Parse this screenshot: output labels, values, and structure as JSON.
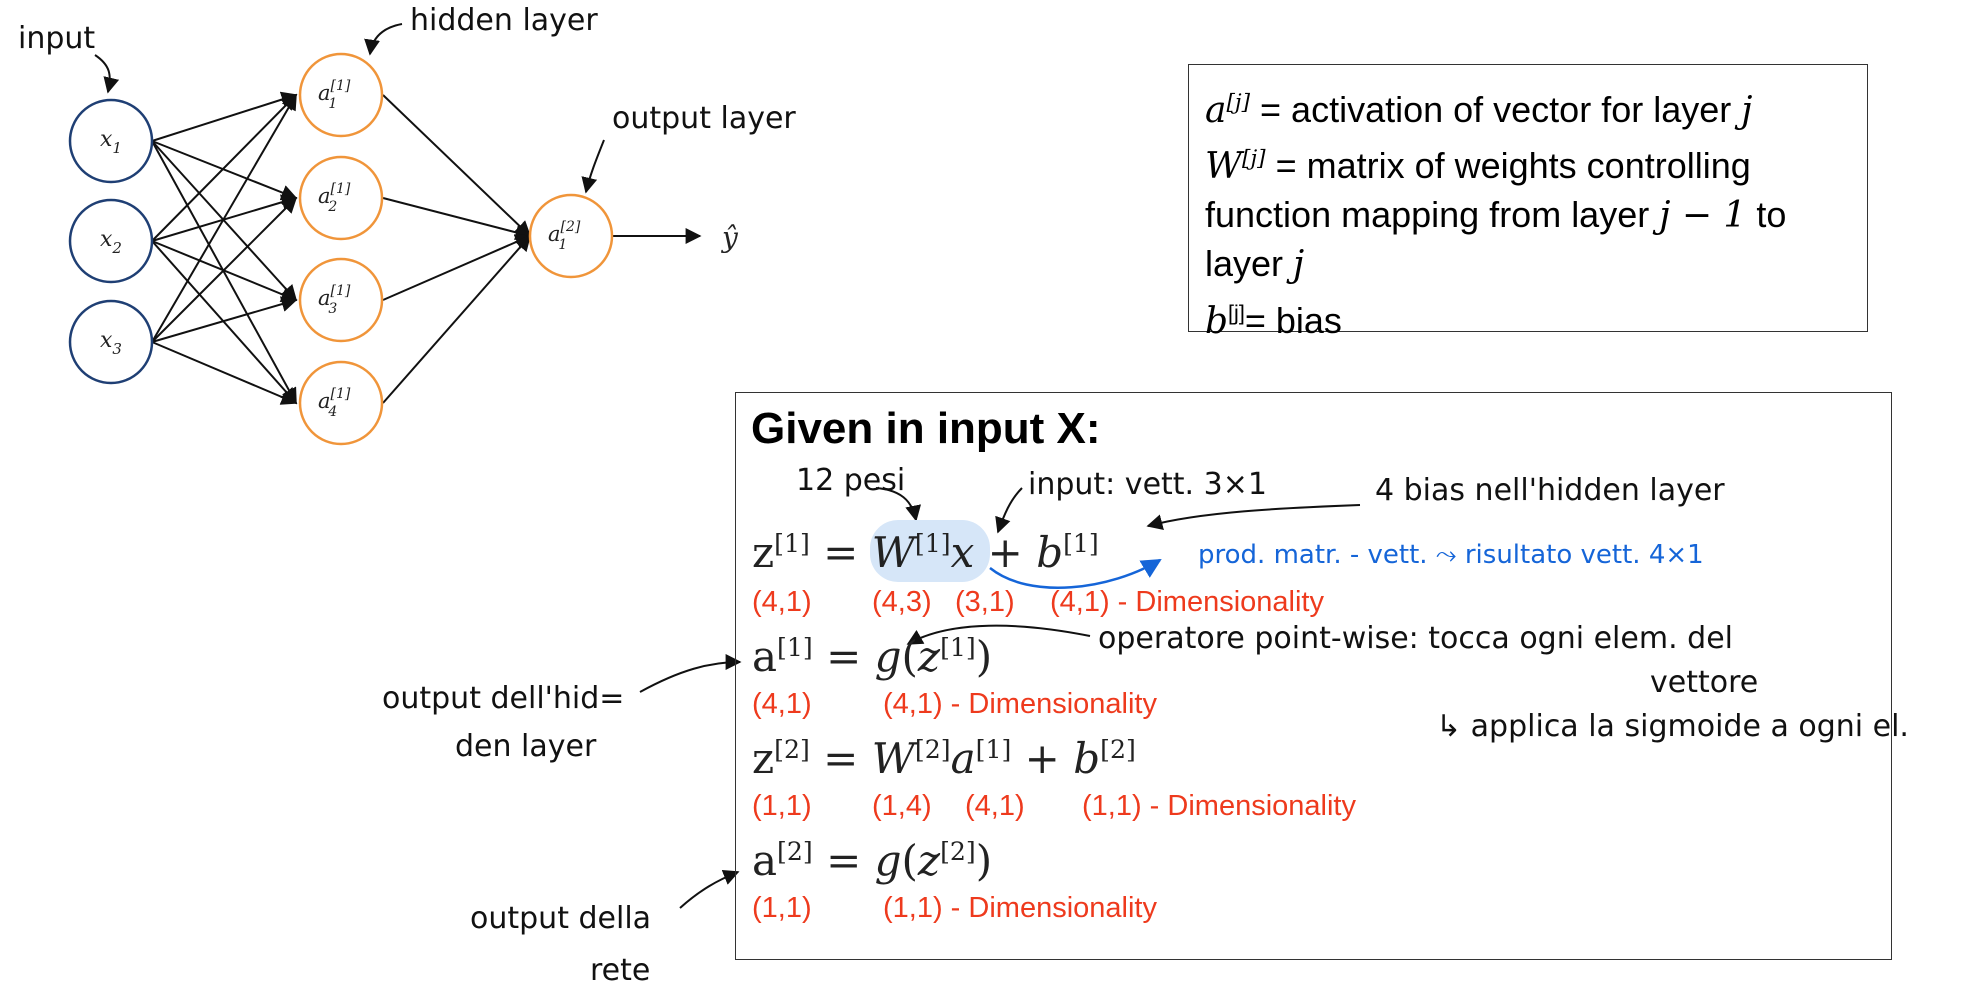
{
  "network": {
    "input_annotation": "input",
    "hidden_annotation": "hidden layer",
    "output_annotation": "output layer",
    "input_nodes": [
      {
        "var": "x",
        "sub": "1"
      },
      {
        "var": "x",
        "sub": "2"
      },
      {
        "var": "x",
        "sub": "3"
      }
    ],
    "hidden_nodes": [
      {
        "var": "a",
        "sup": "[1]",
        "sub": "1"
      },
      {
        "var": "a",
        "sup": "[1]",
        "sub": "2"
      },
      {
        "var": "a",
        "sup": "[1]",
        "sub": "3"
      },
      {
        "var": "a",
        "sup": "[1]",
        "sub": "4"
      }
    ],
    "output_node": {
      "var": "a",
      "sup": "[2]",
      "sub": "1"
    },
    "prediction": "ŷ",
    "colors": {
      "input_node": "#1f3f74",
      "hidden_node": "#f0953a",
      "output_node": "#f0953a"
    }
  },
  "legend": {
    "line1": {
      "sym": "a",
      "sup": "[j]",
      "text": " = activation of vector for layer ",
      "var": "j"
    },
    "line2": {
      "sym": "W",
      "sup": "[j]",
      "text": " = matrix of weights controlling"
    },
    "line3": {
      "text": "function mapping from layer ",
      "var": "j − 1",
      "tail": " to"
    },
    "line4": {
      "text": "layer ",
      "var": "j"
    },
    "line5": {
      "sym": "b",
      "sup": "[j]",
      "text": "= bias"
    }
  },
  "equations": {
    "title": "Given in input X:",
    "eq1": "z[1] = W[1]x + b[1]",
    "dim1": [
      "(4,1)",
      "(4,3)",
      "(3,1)",
      "(4,1) - Dimensionality"
    ],
    "eq2": "a[1] = g(z[1])",
    "dim2": [
      "(4,1)",
      "(4,1) - Dimensionality"
    ],
    "eq3": "z[2] = W[2]a[1] + b[2]",
    "dim3": [
      "(1,1)",
      "(1,4)",
      "(4,1)",
      "(1,1) - Dimensionality"
    ],
    "eq4": "a[2] = g(z[2])",
    "dim4": [
      "(1,1)",
      "(1,1) - Dimensionality"
    ],
    "dim_color": "#ee3a1d"
  },
  "annotations": {
    "pesi": "12 pesi",
    "input_vett": "input: vett. 3×1",
    "bias": "4 bias nell'hidden layer",
    "prod": "prod. matr. - vett. ⤳ risultato vett. 4×1",
    "operatore": "operatore point-wise: tocca ogni elem. del",
    "vettore": "vettore",
    "applica": "↳ applica la sigmoide a ogni el.",
    "hidden_out_1": "output dell'hid=",
    "hidden_out_2": "den layer",
    "rete_out_1": "output della",
    "rete_out_2": "rete",
    "prod_color": "#1565d8"
  }
}
